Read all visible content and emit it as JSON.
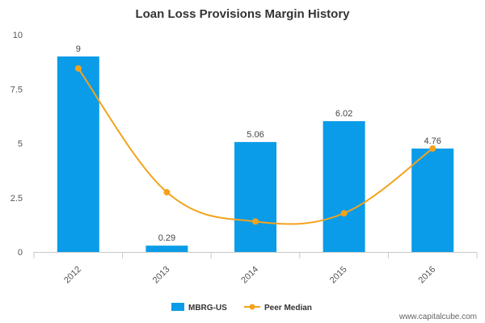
{
  "chart_data": {
    "type": "bar",
    "title": "Loan Loss Provisions Margin History",
    "categories": [
      "2012",
      "2013",
      "2014",
      "2015",
      "2016"
    ],
    "series": [
      {
        "name": "MBRG-US",
        "type": "bar",
        "color": "#0a9ce8",
        "values": [
          9,
          0.29,
          5.06,
          6.02,
          4.76
        ],
        "labels": [
          "9",
          "0.29",
          "5.06",
          "6.02",
          "4.76"
        ]
      },
      {
        "name": "Peer Median",
        "type": "line",
        "color": "#f4a21d",
        "values": [
          8.45,
          2.75,
          1.4,
          1.78,
          4.76
        ]
      }
    ],
    "y_ticks": [
      "0",
      "2.5",
      "5",
      "7.5",
      "10"
    ],
    "ylim": [
      0,
      10
    ],
    "legend": "bottom",
    "grid": false
  },
  "watermark": "www.capitalcube.com"
}
